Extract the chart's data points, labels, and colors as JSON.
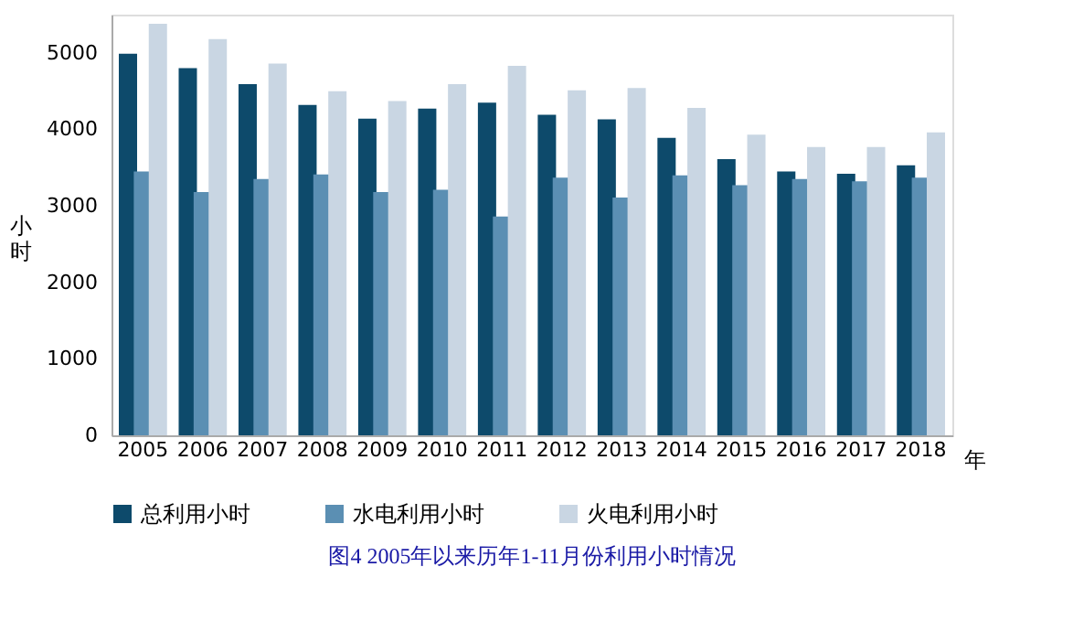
{
  "chart_data": {
    "type": "bar",
    "title": "图4      2005年以来历年1-11月份利用小时情况",
    "xlabel": "年",
    "ylabel": "小时",
    "categories": [
      "2005",
      "2006",
      "2007",
      "2008",
      "2009",
      "2010",
      "2011",
      "2012",
      "2013",
      "2014",
      "2015",
      "2016",
      "2017",
      "2018"
    ],
    "series": [
      {
        "name": "总利用小时",
        "color": "#0d4a6b",
        "values": [
          4990,
          4800,
          4590,
          4320,
          4140,
          4270,
          4350,
          4190,
          4130,
          3890,
          3610,
          3450,
          3420,
          3530
        ]
      },
      {
        "name": "水电利用小时",
        "color": "#5b8fb3",
        "values": [
          3450,
          3180,
          3350,
          3410,
          3180,
          3210,
          2860,
          3370,
          3110,
          3400,
          3270,
          3350,
          3320,
          3370
        ]
      },
      {
        "name": "火电利用小时",
        "color": "#c9d6e3",
        "values": [
          5380,
          5180,
          4860,
          4500,
          4370,
          4590,
          4830,
          4510,
          4540,
          4280,
          3930,
          3770,
          3770,
          3960
        ]
      }
    ],
    "ylim": [
      0,
      5500
    ],
    "yticks": [
      0,
      1000,
      2000,
      3000,
      4000,
      5000
    ],
    "grid": false,
    "legend": "bottom"
  }
}
